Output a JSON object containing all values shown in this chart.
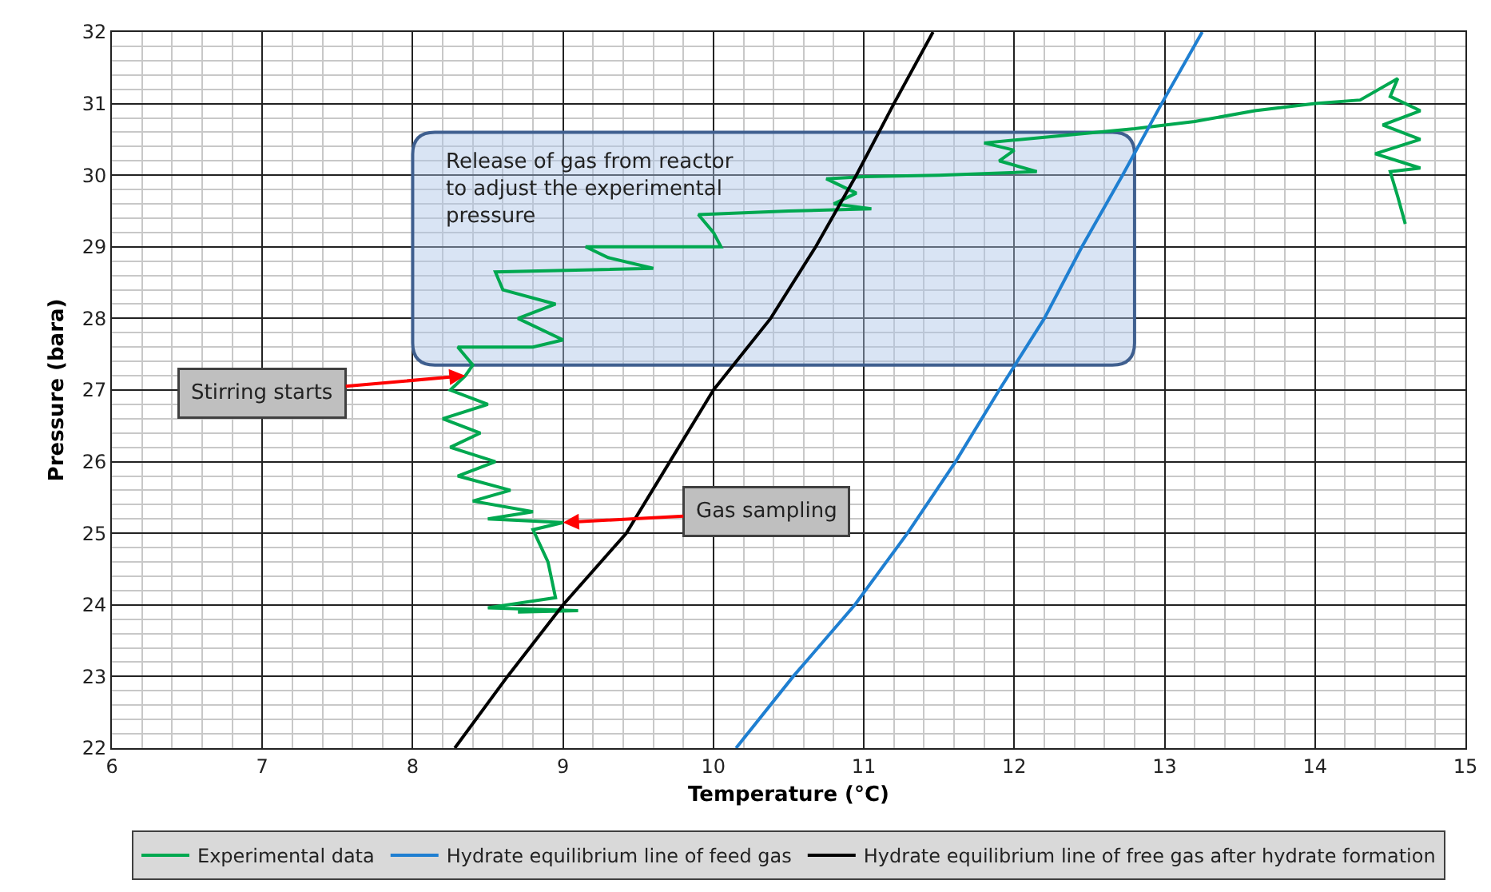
{
  "chart_data": {
    "type": "line",
    "xlabel": "Temperature (°C)",
    "ylabel": "Pressure (bara)",
    "xlim": [
      6,
      15
    ],
    "xticks": [
      6,
      7,
      8,
      9,
      10,
      11,
      12,
      13,
      14,
      15
    ],
    "ylim": [
      22,
      32
    ],
    "yticks": [
      22,
      23,
      24,
      25,
      26,
      27,
      28,
      29,
      30,
      31,
      32
    ],
    "grid": true,
    "legend": "bottom",
    "marker": "none",
    "line_style": "solid",
    "series": [
      {
        "name": "Experimental data",
        "color": "#00a850",
        "x": [
          14.6,
          14.55,
          14.5,
          14.7,
          14.4,
          14.7,
          14.45,
          14.7,
          14.5,
          14.55,
          14.3,
          14.0,
          13.6,
          13.2,
          12.8,
          12.3,
          11.8,
          12.0,
          11.9,
          12.15,
          11.5,
          11.0,
          10.75,
          10.95,
          10.8,
          11.05,
          10.5,
          9.9,
          10.0,
          10.05,
          9.6,
          9.15,
          9.3,
          9.6,
          9.2,
          8.55,
          8.6,
          8.95,
          8.7,
          9.0,
          8.8,
          8.3,
          8.4,
          8.35,
          8.25,
          8.5,
          8.2,
          8.45,
          8.25,
          8.55,
          8.3,
          8.65,
          8.4,
          8.8,
          8.5,
          9.0,
          8.8,
          8.9,
          8.95,
          8.5,
          9.1,
          8.7
        ],
        "values": [
          29.32,
          29.7,
          30.05,
          30.1,
          30.3,
          30.5,
          30.7,
          30.9,
          31.1,
          31.35,
          31.05,
          31.0,
          30.9,
          30.75,
          30.65,
          30.55,
          30.45,
          30.35,
          30.2,
          30.05,
          30.0,
          29.98,
          29.95,
          29.75,
          29.6,
          29.53,
          29.5,
          29.45,
          29.2,
          29.0,
          29.0,
          29.0,
          28.85,
          28.7,
          28.68,
          28.65,
          28.4,
          28.2,
          28.0,
          27.7,
          27.6,
          27.6,
          27.35,
          27.2,
          27.0,
          26.8,
          26.6,
          26.4,
          26.2,
          26.0,
          25.8,
          25.6,
          25.45,
          25.3,
          25.2,
          25.15,
          25.05,
          24.6,
          24.1,
          23.96,
          23.92,
          23.9
        ]
      },
      {
        "name": "Hydrate equilibrium line of feed gas",
        "color": "#1f7fd1",
        "x": [
          10.15,
          10.53,
          10.94,
          11.29,
          11.61,
          11.9,
          12.2,
          12.45,
          12.72,
          12.98,
          13.25
        ],
        "values": [
          22,
          23,
          24,
          25,
          26,
          27,
          28,
          29,
          30,
          31,
          32
        ]
      },
      {
        "name": "Hydrate equilibrium line of free gas after hydrate formation",
        "color": "#000000",
        "x": [
          8.28,
          8.63,
          9.0,
          9.42,
          9.71,
          10.0,
          10.38,
          10.68,
          10.95,
          11.2,
          11.46
        ],
        "values": [
          22,
          23,
          24,
          25,
          26,
          27,
          28,
          29,
          30,
          31,
          32
        ]
      }
    ],
    "annotations": [
      "Release of gas from reactor\nto adjust the experimental\npressure",
      {
        "text": "Stirring starts",
        "x": 8.35,
        "y": 27.2
      },
      {
        "text": "Gas sampling",
        "x": 9.0,
        "y": 25.15
      }
    ]
  }
}
